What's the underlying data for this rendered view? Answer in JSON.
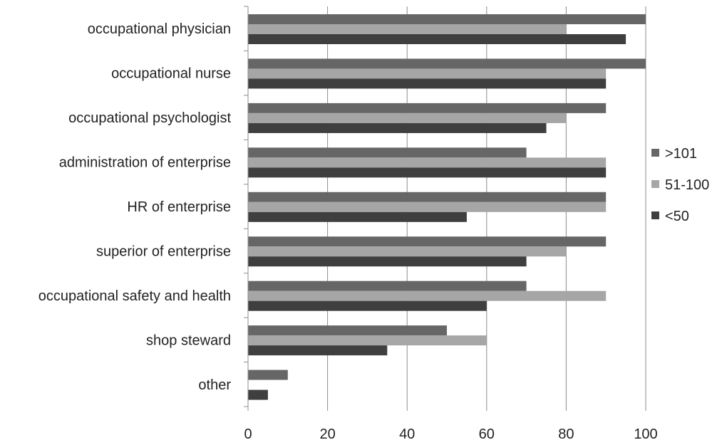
{
  "chart_data": {
    "type": "bar",
    "orientation": "horizontal",
    "categories": [
      "occupational physician",
      "occupational nurse",
      "occupational psychologist",
      "administration of enterprise",
      "HR of enterprise",
      "superior of enterprise",
      "occupational safety and health",
      "shop steward",
      "other"
    ],
    "series": [
      {
        "name": ">101",
        "color": "#666666",
        "values": [
          100,
          100,
          90,
          70,
          90,
          90,
          70,
          50,
          10
        ]
      },
      {
        "name": "51-100",
        "color": "#a6a6a6",
        "values": [
          80,
          90,
          80,
          90,
          90,
          80,
          90,
          60,
          0
        ]
      },
      {
        "name": "<50",
        "color": "#3f3f3f",
        "values": [
          95,
          90,
          75,
          90,
          55,
          70,
          60,
          35,
          5
        ]
      }
    ],
    "xlim": [
      0,
      100
    ],
    "xticks": [
      "0",
      "20",
      "40",
      "60",
      "80",
      "100"
    ],
    "grid": "vertical",
    "legend_position": "right"
  }
}
